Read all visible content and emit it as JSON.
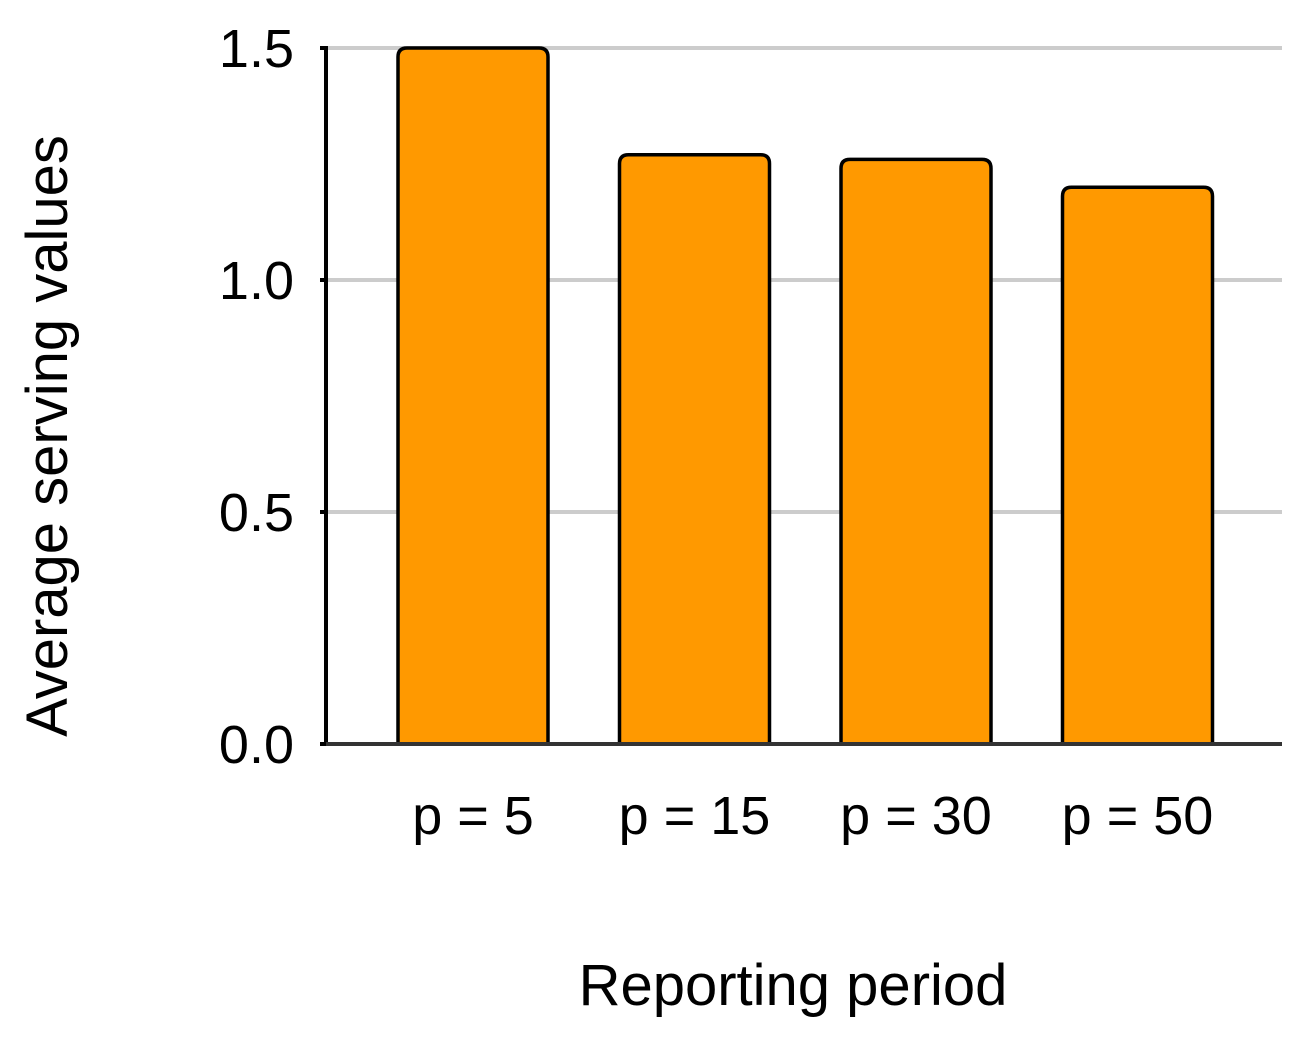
{
  "chart_data": {
    "type": "bar",
    "categories": [
      "p = 5",
      "p = 15",
      "p = 30",
      "p = 50"
    ],
    "values": [
      1.5,
      1.27,
      1.26,
      1.2
    ],
    "xlabel": "Reporting period",
    "ylabel": "Average serving values",
    "ylim": [
      0,
      1.5
    ],
    "yticks": [
      "0.0",
      "0.5",
      "1.0",
      "1.5"
    ],
    "grid": true,
    "colors": {
      "bar_fill": "#FF9900",
      "bar_stroke": "#000000",
      "grid": "#CCCCCC",
      "axis": "#000000"
    }
  }
}
